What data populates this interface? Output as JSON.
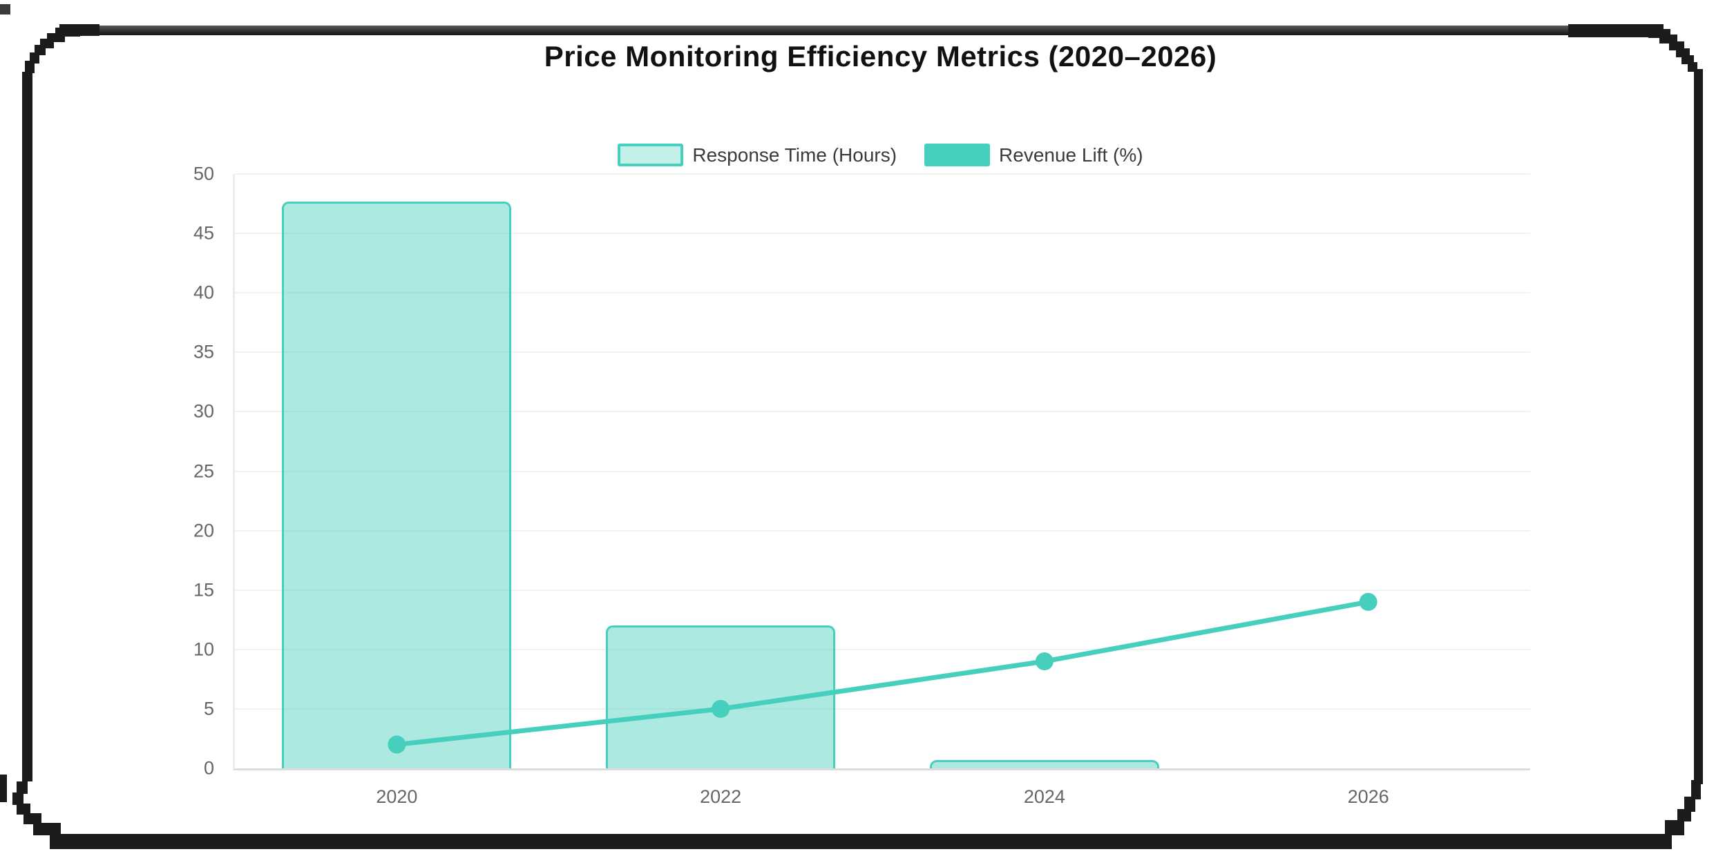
{
  "chart": {
    "title": "Price Monitoring Efficiency Metrics (2020–2026)",
    "legend": [
      {
        "label": "Response Time (Hours)",
        "swatch": "bar"
      },
      {
        "label": "Revenue Lift (%)",
        "swatch": "line"
      }
    ]
  },
  "chart_data": {
    "type": "bar",
    "subtype": "bar+line combo",
    "categories": [
      "2020",
      "2022",
      "2024",
      "2026"
    ],
    "series": [
      {
        "name": "Response Time (Hours)",
        "type": "bar",
        "values": [
          47.7,
          12,
          0.7,
          0
        ]
      },
      {
        "name": "Revenue Lift (%)",
        "type": "line",
        "values": [
          2,
          5,
          9,
          14
        ]
      }
    ],
    "title": "Price Monitoring Efficiency Metrics (2020–2026)",
    "xlabel": "",
    "ylabel": "",
    "ylim": [
      0,
      50
    ],
    "ytick_step": 5,
    "yticks": [
      0,
      5,
      10,
      15,
      20,
      25,
      30,
      35,
      40,
      45,
      50
    ],
    "grid": true,
    "legend_position": "top",
    "colors": {
      "accent": "#47CFBD",
      "bar_fill": "rgba(71,207,189,0.45)",
      "legend_bar_fill": "rgba(71,207,189,0.32)",
      "grid_line": "#f2f2f2",
      "axis_line": "#dcdcdc",
      "y_axis_line": "#ececec",
      "tick_text": "#666666",
      "legend_text": "#3a3a3a",
      "title_text": "#111111",
      "frame_black": "#1b1b1b"
    }
  }
}
